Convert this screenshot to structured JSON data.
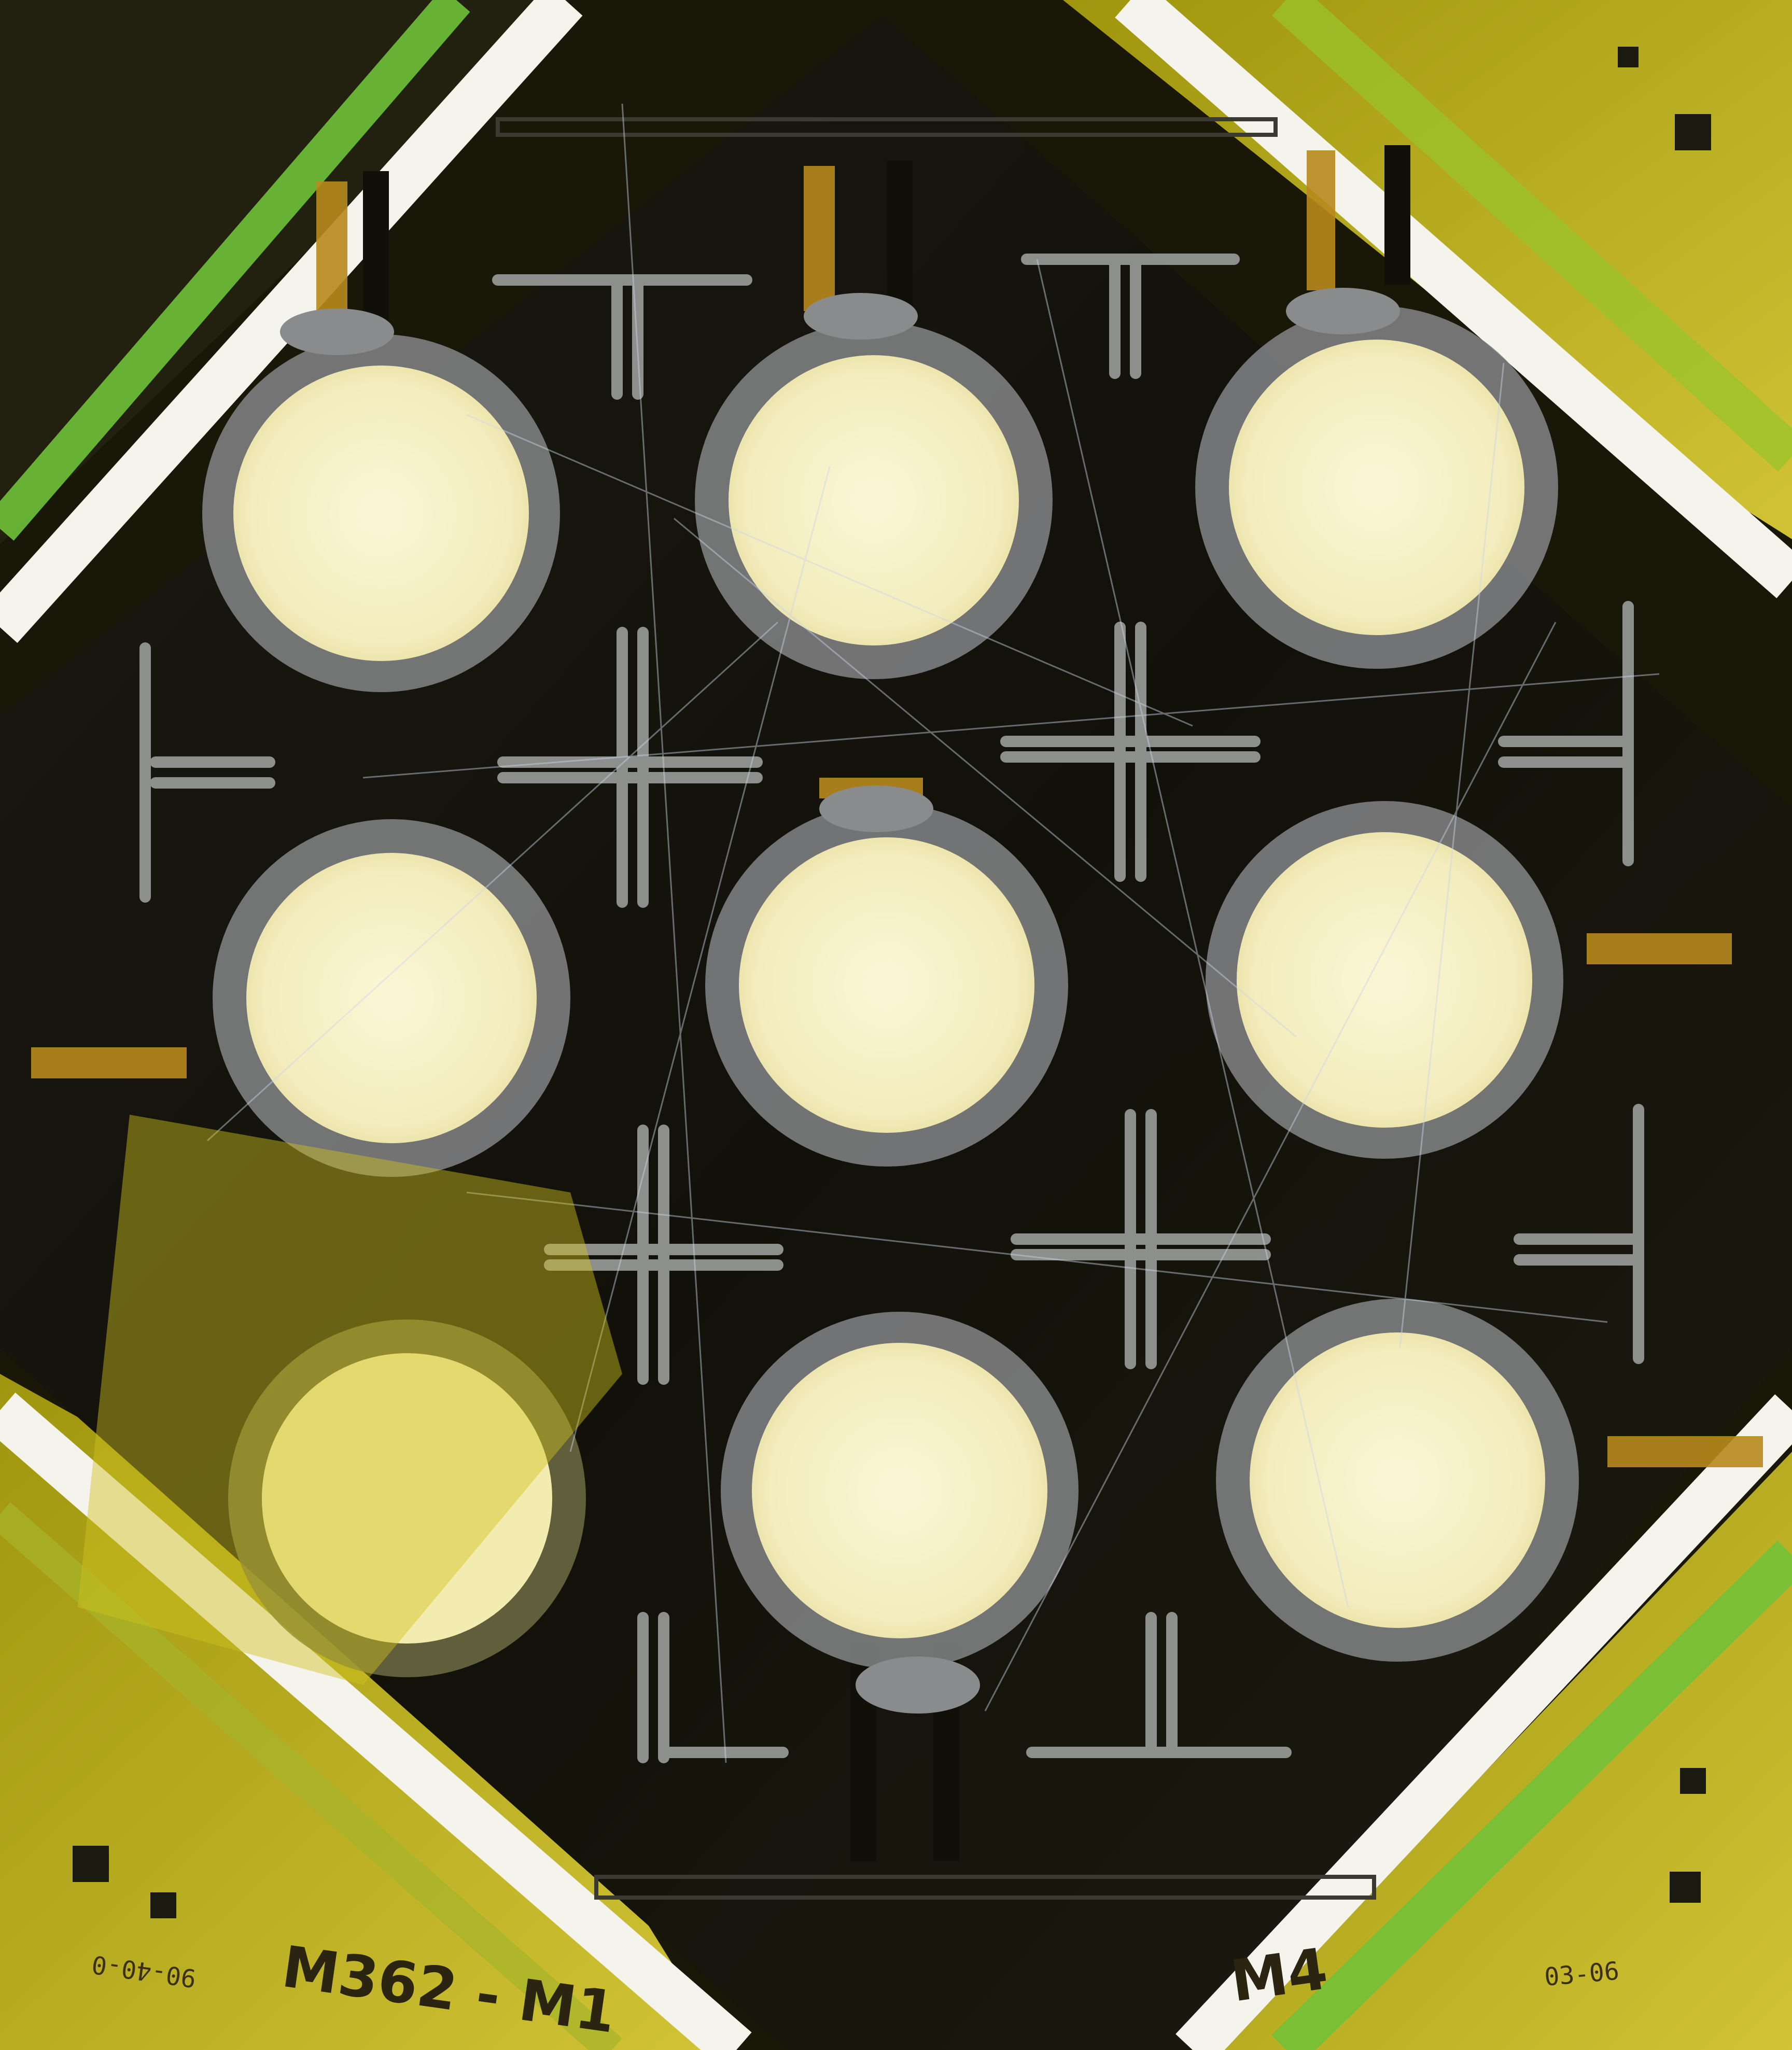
{
  "photo": {
    "subject": "photomask-wafer-with-nine-circular-pads",
    "colors": {
      "background_dark": "#141209",
      "glass_frame": "#f4f3ec",
      "tape_yellow": "#c8c400",
      "tape_green": "#6fc23a",
      "pad_fill": "#f5f0c8",
      "pad_ring": "#7d7e80",
      "alignment_mark": "#8d8f8c",
      "contact_tab": "#b88a1e",
      "scratch": "#c9d6e6"
    },
    "labels": {
      "bottom_left_code": "M362 - M1",
      "bottom_right_code": "M4",
      "bottom_left_date": "90-40-0",
      "bottom_right_date": "03-06"
    }
  }
}
